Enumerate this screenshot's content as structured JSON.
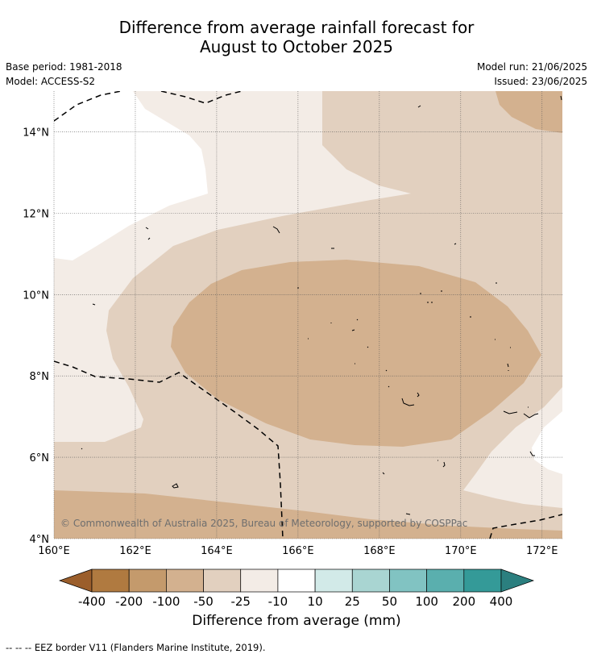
{
  "header": {
    "title_line1": "Difference from average rainfall forecast for",
    "title_line2": "August to October 2025",
    "base_period": "Base period: 1981-2018",
    "model": "Model: ACCESS-S2",
    "model_run": "Model run: 21/06/2025",
    "issued": "Issued: 23/06/2025"
  },
  "map": {
    "copyright": "© Commonwealth of Australia 2025, Bureau of Meteorology, supported by COSPPac",
    "lat_labels": [
      "4°N",
      "6°N",
      "8°N",
      "10°N",
      "12°N",
      "14°N"
    ],
    "lon_labels": [
      "160°E",
      "162°E",
      "164°E",
      "166°E",
      "168°E",
      "170°E",
      "172°E"
    ],
    "lon_range": [
      160,
      172.5
    ],
    "lat_range": [
      4,
      15
    ],
    "grid": true
  },
  "colorbar": {
    "tick_labels": [
      "-400",
      "-200",
      "-100",
      "-50",
      "-25",
      "-10",
      "10",
      "25",
      "50",
      "100",
      "200",
      "400"
    ],
    "colors": [
      "#9b5e2b",
      "#b07a40",
      "#c49a6c",
      "#d3b18f",
      "#e2d0bf",
      "#f3ece6",
      "#ffffff",
      "#d2eae8",
      "#a9d5d2",
      "#81c3c2",
      "#5aafae",
      "#349a98",
      "#2b7f7f"
    ],
    "label": "Difference from average (mm)"
  },
  "legend": {
    "eez_line": "--  --  -- EEZ border V11 (Flanders Marine Institute, 2019)."
  }
}
